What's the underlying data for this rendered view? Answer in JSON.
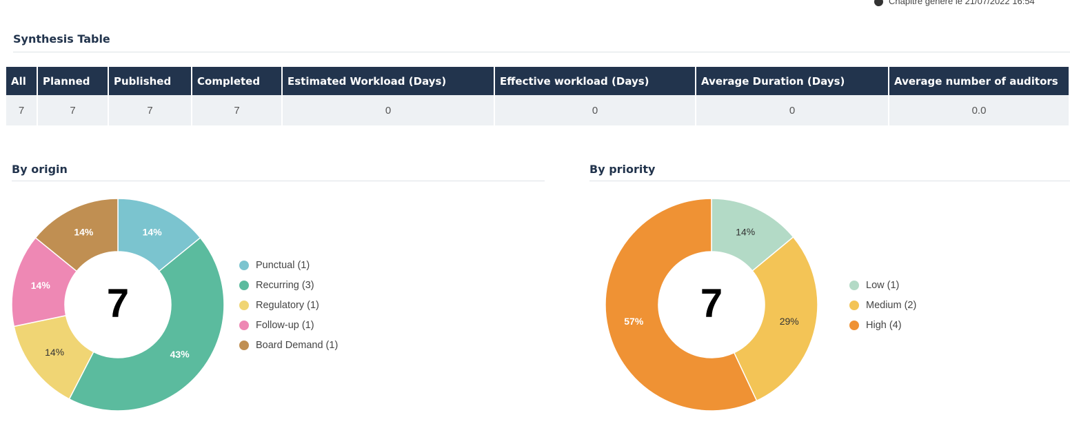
{
  "header": {
    "generated": "Chapitre généré le 21/07/2022 16:54"
  },
  "synthesis": {
    "title": "Synthesis Table",
    "table": {
      "columns": [
        "All",
        "Planned",
        "Published",
        "Completed",
        "Estimated Workload (Days)",
        "Effective workload (Days)",
        "Average Duration (Days)",
        "Average number of auditors"
      ],
      "rows": [
        [
          "7",
          "7",
          "7",
          "7",
          "0",
          "0",
          "0",
          "0.0"
        ]
      ]
    }
  },
  "chart_data": [
    {
      "type": "donut",
      "title": "By origin",
      "center_value": 7,
      "categories": [
        "Punctual (1)",
        "Recurring (3)",
        "Regulatory (1)",
        "Follow-up (1)",
        "Board Demand (1)"
      ],
      "values": [
        14,
        43,
        14,
        14,
        14
      ],
      "colors": [
        "#7bc4cf",
        "#5bbb9e",
        "#f0d574",
        "#ee88b4",
        "#c08f52"
      ],
      "label_colors": [
        "#ffffff",
        "#ffffff",
        "#333333",
        "#ffffff",
        "#ffffff"
      ]
    },
    {
      "type": "donut",
      "title": "By priority",
      "center_value": 7,
      "categories": [
        "Low (1)",
        "Medium (2)",
        "High (4)"
      ],
      "values": [
        14,
        29,
        57
      ],
      "colors": [
        "#b3dac6",
        "#f3c456",
        "#ef9234"
      ],
      "label_colors": [
        "#333333",
        "#333333",
        "#ffffff"
      ]
    }
  ]
}
